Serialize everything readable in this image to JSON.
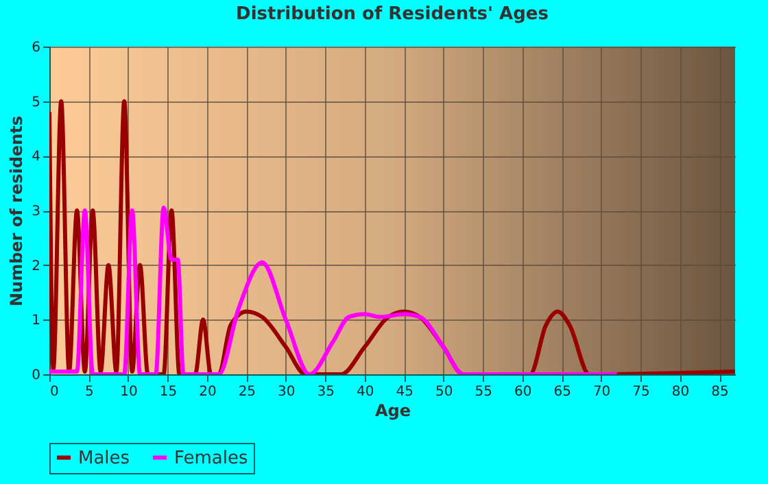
{
  "chart_data": {
    "type": "line",
    "title": "Distribution of Residents' Ages",
    "xlabel": "Age",
    "ylabel": "Number of residents",
    "xlim": [
      0,
      87
    ],
    "xticks": [
      0,
      5,
      10,
      15,
      20,
      25,
      30,
      35,
      40,
      45,
      50,
      55,
      60,
      65,
      70,
      75,
      80,
      85
    ],
    "ylim": [
      0,
      6
    ],
    "yticks": [
      0,
      1,
      2,
      3,
      4,
      5,
      6
    ],
    "grid": true,
    "legend": "bottom",
    "marker": "none",
    "line_style": "solid",
    "series": [
      {
        "name": "Males",
        "color": "#990000",
        "x": [
          0,
          0.5,
          1.5,
          2.5,
          3.5,
          4.5,
          5.5,
          6.5,
          7.5,
          8.5,
          9.5,
          10.5,
          11.5,
          12.5,
          14.5,
          15.5,
          16.5,
          18.5,
          19.5,
          20.5,
          21.5,
          23,
          25,
          27,
          30,
          32.5,
          37,
          40,
          43,
          45,
          47,
          50,
          52.5,
          61,
          63,
          64.5,
          66,
          68.5,
          87
        ],
        "values": [
          4.8,
          0.1,
          5,
          0.05,
          3,
          0.05,
          3,
          0.05,
          2,
          0.05,
          5,
          0.05,
          2,
          0,
          0,
          3,
          0,
          0,
          1,
          0,
          0,
          0.9,
          1.15,
          1.05,
          0.5,
          0,
          0,
          0.5,
          1.05,
          1.15,
          1.05,
          0.5,
          0,
          0,
          0.9,
          1.15,
          0.9,
          0,
          0.05
        ]
      },
      {
        "name": "Females",
        "color": "#ff00ff",
        "x": [
          0,
          3.5,
          4.5,
          5.5,
          9.5,
          10.5,
          11.5,
          13.5,
          14.5,
          15.5,
          16.3,
          17,
          20,
          21.5,
          24,
          27,
          30,
          33,
          36,
          38,
          40,
          42,
          45,
          47,
          50,
          52.5,
          72
        ],
        "values": [
          0.05,
          0.05,
          3,
          0,
          0,
          3,
          0,
          0,
          3.05,
          2.1,
          2.1,
          0,
          0,
          0,
          1.2,
          2.05,
          1,
          0,
          0.6,
          1.05,
          1.1,
          1.05,
          1.1,
          1.05,
          0.5,
          0,
          0
        ]
      }
    ]
  }
}
